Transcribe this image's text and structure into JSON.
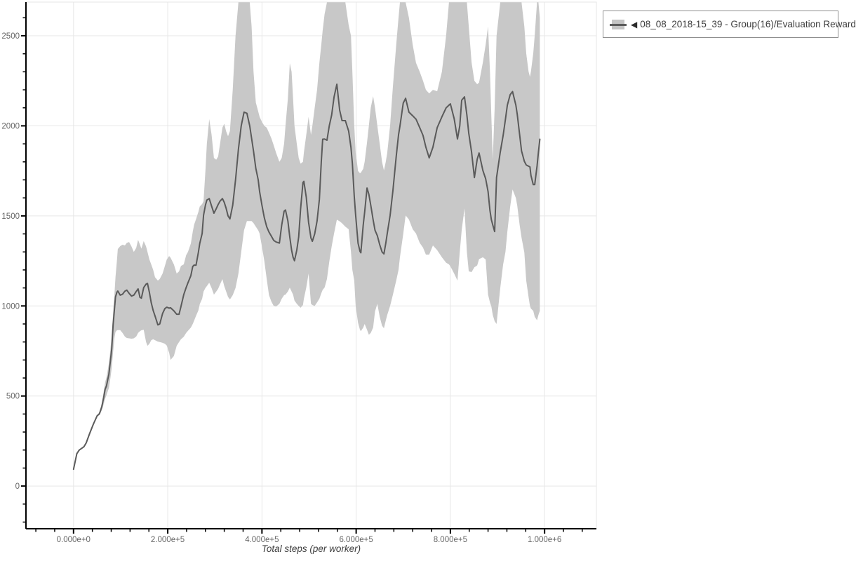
{
  "window": {
    "background": "#ffffff"
  },
  "colors": {
    "background": "#ffffff",
    "band": "#c8c8c8",
    "line": "#5a5a5a",
    "grid": "#e7e7e7",
    "outline": "#e5e5e5",
    "axis": "#000000",
    "tick_label": "#666666",
    "axis_label": "#3d3d3d",
    "legend_border": "#8f8f8f",
    "legend_text": "#3d3d3d"
  },
  "legend": {
    "entries": [
      {
        "marker_glyph": "◀",
        "swatch": "band-with-line",
        "label": "08_08_2018-15_39 - Group(16)/Evaluation Reward"
      }
    ]
  },
  "axes": {
    "x": {
      "label": "Total steps (per worker)",
      "major_ticks": [
        {
          "value": 0,
          "label": "0.000e+0"
        },
        {
          "value": 200000,
          "label": "2.000e+5"
        },
        {
          "value": 400000,
          "label": "4.000e+5"
        },
        {
          "value": 600000,
          "label": "6.000e+5"
        },
        {
          "value": 800000,
          "label": "8.000e+5"
        },
        {
          "value": 1000000,
          "label": "1.000e+6"
        }
      ],
      "minor_tick_step": 40000,
      "minor_tick_range": [
        -80000,
        1080000
      ]
    },
    "y": {
      "label": "",
      "major_ticks": [
        {
          "value": 0,
          "label": "0"
        },
        {
          "value": 500,
          "label": "500"
        },
        {
          "value": 1000,
          "label": "1000"
        },
        {
          "value": 1500,
          "label": "1500"
        },
        {
          "value": 2000,
          "label": "2000"
        },
        {
          "value": 2500,
          "label": "2500"
        }
      ],
      "minor_tick_step": 100,
      "minor_tick_range": [
        -200,
        2600
      ]
    }
  },
  "chart_data": {
    "type": "line",
    "title": "",
    "xlabel": "Total steps (per worker)",
    "ylabel": "",
    "grid": true,
    "legend_position": "outside-top-right",
    "xlim": [
      -101000,
      1110000
    ],
    "ylim": [
      -237,
      2687
    ],
    "series": [
      {
        "name": "08_08_2018-15_39 - Group(16)/Evaluation Reward",
        "style": "mean-line-with-confidence-band",
        "x": [
          0,
          7000,
          12000,
          22000,
          27000,
          34000,
          42000,
          50000,
          55000,
          60000,
          64000,
          67000,
          70000,
          75000,
          78000,
          81000,
          84000,
          87000,
          89000,
          92000,
          94000,
          99000,
          104000,
          109000,
          113000,
          118000,
          123000,
          128000,
          133000,
          137000,
          141000,
          144000,
          149000,
          154000,
          157000,
          161000,
          165000,
          169000,
          173000,
          179000,
          183000,
          189000,
          194000,
          198000,
          203000,
          206000,
          213000,
          219000,
          224000,
          228000,
          234000,
          239000,
          243000,
          249000,
          253000,
          256000,
          260000,
          265000,
          268000,
          273000,
          276000,
          280000,
          283000,
          288000,
          293000,
          298000,
          303000,
          307000,
          311000,
          316000,
          320000,
          324000,
          328000,
          332000,
          338000,
          344000,
          350000,
          356000,
          362000,
          368000,
          374000,
          378000,
          382000,
          387000,
          392000,
          395000,
          400000,
          405000,
          410000,
          415000,
          420000,
          425000,
          430000,
          437000,
          442000,
          447000,
          450000,
          455000,
          459000,
          463000,
          466000,
          469000,
          474000,
          478000,
          482000,
          487000,
          489000,
          494000,
          499000,
          504000,
          507000,
          512000,
          517000,
          522000,
          526000,
          529000,
          533000,
          538000,
          543000,
          548000,
          553000,
          559000,
          565000,
          570000,
          577000,
          584000,
          589000,
          592000,
          596000,
          599000,
          604000,
          608000,
          610000,
          615000,
          618000,
          623000,
          627000,
          631000,
          636000,
          640000,
          645000,
          650000,
          655000,
          659000,
          663000,
          666000,
          672000,
          678000,
          685000,
          690000,
          693000,
          700000,
          705000,
          712000,
          720000,
          727000,
          735000,
          742000,
          748000,
          755000,
          763000,
          772000,
          782000,
          791000,
          797000,
          800000,
          808000,
          815000,
          820000,
          824000,
          830000,
          835000,
          839000,
          845000,
          851000,
          857000,
          861000,
          869000,
          875000,
          880000,
          884000,
          887000,
          890000,
          894000,
          898000,
          906000,
          912000,
          917000,
          921000,
          927000,
          932000,
          939000,
          942000,
          947000,
          951000,
          957000,
          961000,
          966000,
          969000,
          971000,
          976000,
          979000,
          984000,
          987000,
          990000
        ],
        "mean": [
          93,
          180,
          200,
          218,
          240,
          290,
          343,
          390,
          401,
          440,
          492,
          537,
          557,
          622,
          690,
          760,
          894,
          985,
          1050,
          1076,
          1083,
          1060,
          1065,
          1082,
          1088,
          1070,
          1055,
          1060,
          1080,
          1095,
          1048,
          1043,
          1102,
          1121,
          1125,
          1076,
          1017,
          975,
          945,
          895,
          900,
          958,
          985,
          993,
          988,
          990,
          973,
          954,
          954,
          997,
          1063,
          1102,
          1129,
          1168,
          1219,
          1227,
          1226,
          1297,
          1347,
          1402,
          1503,
          1560,
          1588,
          1596,
          1555,
          1515,
          1540,
          1563,
          1582,
          1596,
          1575,
          1542,
          1500,
          1483,
          1560,
          1700,
          1870,
          2000,
          2076,
          2070,
          2000,
          1930,
          1860,
          1764,
          1700,
          1635,
          1560,
          1490,
          1440,
          1410,
          1387,
          1364,
          1355,
          1349,
          1449,
          1526,
          1533,
          1472,
          1383,
          1310,
          1270,
          1251,
          1310,
          1383,
          1538,
          1686,
          1692,
          1604,
          1464,
          1377,
          1359,
          1400,
          1472,
          1592,
          1800,
          1926,
          1927,
          1920,
          2000,
          2060,
          2160,
          2231,
          2087,
          2029,
          2029,
          1971,
          1880,
          1791,
          1608,
          1503,
          1349,
          1304,
          1295,
          1450,
          1520,
          1655,
          1620,
          1560,
          1478,
          1420,
          1390,
          1340,
          1300,
          1289,
          1350,
          1402,
          1503,
          1640,
          1830,
          1950,
          1998,
          2126,
          2153,
          2076,
          2056,
          2037,
          1990,
          1947,
          1881,
          1822,
          1881,
          1990,
          2050,
          2100,
          2115,
          2122,
          2040,
          1927,
          2000,
          2142,
          2161,
          2060,
          1959,
          1854,
          1713,
          1814,
          1849,
          1752,
          1706,
          1635,
          1530,
          1479,
          1450,
          1413,
          1713,
          1854,
          1947,
          2037,
          2115,
          2173,
          2190,
          2115,
          2064,
          1951,
          1861,
          1803,
          1783,
          1776,
          1772,
          1725,
          1674,
          1674,
          1776,
          1854,
          1926
        ],
        "lower": [
          93,
          180,
          200,
          218,
          240,
          290,
          343,
          388,
          395,
          420,
          455,
          485,
          505,
          545,
          595,
          655,
          745,
          825,
          855,
          865,
          866,
          866,
          850,
          830,
          822,
          820,
          818,
          820,
          830,
          850,
          860,
          865,
          868,
          800,
          779,
          790,
          810,
          815,
          810,
          802,
          800,
          795,
          790,
          780,
          740,
          700,
          722,
          779,
          800,
          815,
          829,
          850,
          862,
          880,
          900,
          919,
          945,
          975,
          1010,
          1040,
          1080,
          1100,
          1110,
          1129,
          1100,
          1063,
          1080,
          1095,
          1120,
          1149,
          1110,
          1080,
          1050,
          1036,
          1060,
          1100,
          1180,
          1300,
          1420,
          1471,
          1471,
          1471,
          1460,
          1440,
          1420,
          1402,
          1330,
          1250,
          1150,
          1060,
          1024,
          1000,
          997,
          1012,
          1040,
          1060,
          1063,
          1080,
          1102,
          1080,
          1063,
          1030,
          1012,
          1000,
          990,
          1005,
          1040,
          1102,
          1180,
          1012,
          1005,
          1000,
          1020,
          1040,
          1070,
          1090,
          1102,
          1150,
          1246,
          1330,
          1402,
          1479,
          1470,
          1459,
          1440,
          1426,
          1300,
          1200,
          1141,
          1000,
          907,
          868,
          860,
          880,
          900,
          868,
          840,
          850,
          880,
          970,
          1012,
          940,
          890,
          876,
          920,
          950,
          1000,
          1063,
          1141,
          1200,
          1270,
          1400,
          1503,
          1480,
          1426,
          1402,
          1350,
          1324,
          1285,
          1285,
          1336,
          1310,
          1270,
          1240,
          1231,
          1220,
          1180,
          1141,
          1300,
          1420,
          1542,
          1300,
          1192,
          1188,
          1215,
          1225,
          1260,
          1270,
          1258,
          1063,
          1020,
          997,
          950,
          915,
          900,
          1100,
          1231,
          1300,
          1413,
          1550,
          1647,
          1600,
          1557,
          1450,
          1380,
          1297,
          1141,
          1050,
          1000,
          985,
          973,
          940,
          920,
          950,
          973
        ],
        "upper": [
          93,
          180,
          200,
          218,
          240,
          290,
          343,
          394,
          410,
          462,
          525,
          575,
          605,
          680,
          755,
          835,
          965,
          1070,
          1160,
          1250,
          1316,
          1332,
          1340,
          1336,
          1350,
          1355,
          1330,
          1300,
          1322,
          1367,
          1340,
          1318,
          1360,
          1330,
          1300,
          1258,
          1230,
          1200,
          1160,
          1141,
          1150,
          1180,
          1222,
          1258,
          1277,
          1268,
          1231,
          1180,
          1192,
          1222,
          1231,
          1282,
          1300,
          1347,
          1412,
          1452,
          1482,
          1522,
          1552,
          1566,
          1582,
          1752,
          1900,
          2037,
          1952,
          1822,
          1812,
          1830,
          1900,
          1990,
          2012,
          1970,
          1942,
          1971,
          2200,
          2500,
          2686,
          2686,
          2686,
          2686,
          2686,
          2552,
          2302,
          2130,
          2080,
          2050,
          2022,
          2000,
          1990,
          1962,
          1930,
          1892,
          1850,
          1800,
          1822,
          1900,
          2000,
          2152,
          2348,
          2300,
          2152,
          2000,
          1900,
          1822,
          1790,
          1800,
          1852,
          1950,
          2050,
          1950,
          2000,
          2100,
          2200,
          2350,
          2450,
          2530,
          2620,
          2686,
          2686,
          2686,
          2686,
          2686,
          2686,
          2686,
          2686,
          2560,
          2500,
          2300,
          2000,
          1852,
          1750,
          1737,
          1740,
          1762,
          1800,
          1908,
          2000,
          2100,
          2165,
          2100,
          2000,
          1900,
          1800,
          1752,
          1802,
          1850,
          2002,
          2219,
          2450,
          2600,
          2686,
          2686,
          2686,
          2600,
          2450,
          2350,
          2300,
          2250,
          2200,
          2180,
          2200,
          2192,
          2300,
          2500,
          2686,
          2686,
          2686,
          2686,
          2686,
          2686,
          2686,
          2686,
          2552,
          2352,
          2250,
          2231,
          2240,
          2352,
          2452,
          2552,
          2302,
          2050,
          1815,
          2100,
          2500,
          2686,
          2686,
          2686,
          2686,
          2686,
          2686,
          2686,
          2686,
          2686,
          2686,
          2552,
          2402,
          2302,
          2272,
          2302,
          2402,
          2502,
          2686,
          2686,
          2600
        ]
      }
    ]
  }
}
